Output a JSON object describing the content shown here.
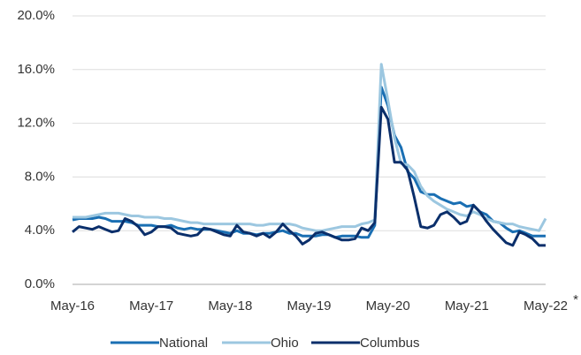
{
  "chart_data": {
    "type": "line",
    "categories": [
      "May-16",
      null,
      null,
      null,
      null,
      null,
      null,
      null,
      null,
      null,
      null,
      null,
      "May-17",
      null,
      null,
      null,
      null,
      null,
      null,
      null,
      null,
      null,
      null,
      null,
      "May-18",
      null,
      null,
      null,
      null,
      null,
      null,
      null,
      null,
      null,
      null,
      null,
      "May-19",
      null,
      null,
      null,
      null,
      null,
      null,
      null,
      null,
      null,
      null,
      null,
      "May-20",
      null,
      null,
      null,
      null,
      null,
      null,
      null,
      null,
      null,
      null,
      null,
      "May-21",
      null,
      null,
      null,
      null,
      null,
      null,
      null,
      null,
      null,
      null,
      null,
      "May-22"
    ],
    "x_footnote_marker": "*",
    "series": [
      {
        "name": "National",
        "color": "#1a6fb3",
        "values": [
          4.8,
          4.9,
          4.9,
          4.9,
          5.0,
          4.9,
          4.7,
          4.7,
          4.7,
          4.6,
          4.4,
          4.4,
          4.4,
          4.3,
          4.3,
          4.4,
          4.2,
          4.1,
          4.2,
          4.1,
          4.1,
          4.1,
          4.0,
          3.9,
          3.8,
          4.0,
          3.8,
          3.8,
          3.7,
          3.8,
          3.8,
          3.9,
          4.0,
          3.8,
          3.8,
          3.6,
          3.6,
          3.6,
          3.7,
          3.7,
          3.5,
          3.6,
          3.6,
          3.6,
          3.5,
          3.5,
          4.4,
          14.7,
          13.3,
          11.1,
          10.2,
          8.4,
          7.9,
          6.9,
          6.7,
          6.7,
          6.4,
          6.2,
          6.0,
          6.1,
          5.8,
          5.9,
          5.4,
          5.2,
          4.7,
          4.6,
          4.2,
          3.9,
          4.0,
          3.8,
          3.6,
          3.6,
          3.6
        ]
      },
      {
        "name": "Ohio",
        "color": "#9cc7e0",
        "values": [
          5.0,
          5.0,
          5.0,
          5.1,
          5.2,
          5.3,
          5.3,
          5.3,
          5.2,
          5.1,
          5.1,
          5.0,
          5.0,
          5.0,
          4.9,
          4.9,
          4.8,
          4.7,
          4.6,
          4.6,
          4.5,
          4.5,
          4.5,
          4.5,
          4.5,
          4.5,
          4.5,
          4.5,
          4.4,
          4.4,
          4.5,
          4.5,
          4.5,
          4.5,
          4.4,
          4.2,
          4.1,
          4.0,
          4.0,
          4.1,
          4.2,
          4.3,
          4.3,
          4.3,
          4.5,
          4.6,
          4.8,
          16.4,
          13.7,
          10.9,
          9.0,
          8.9,
          8.4,
          7.3,
          6.6,
          6.2,
          5.9,
          5.6,
          5.4,
          5.2,
          5.1,
          5.4,
          5.2,
          4.9,
          4.7,
          4.6,
          4.5,
          4.5,
          4.3,
          4.2,
          4.1,
          4.0,
          4.9
        ]
      },
      {
        "name": "Columbus",
        "color": "#0b2f6b",
        "values": [
          3.9,
          4.3,
          4.2,
          4.1,
          4.3,
          4.1,
          3.9,
          4.0,
          4.9,
          4.7,
          4.3,
          3.7,
          3.9,
          4.3,
          4.3,
          4.2,
          3.8,
          3.7,
          3.6,
          3.7,
          4.2,
          4.1,
          3.9,
          3.7,
          3.6,
          4.4,
          3.9,
          3.8,
          3.6,
          3.8,
          3.5,
          3.9,
          4.5,
          4.0,
          3.6,
          3.0,
          3.3,
          3.8,
          3.9,
          3.7,
          3.5,
          3.3,
          3.3,
          3.4,
          4.2,
          4.0,
          4.6,
          13.2,
          12.3,
          9.1,
          9.1,
          8.5,
          6.5,
          4.3,
          4.2,
          4.4,
          5.2,
          5.4,
          5.0,
          4.5,
          4.7,
          5.9,
          5.4,
          4.7,
          4.1,
          3.6,
          3.1,
          2.9,
          3.9,
          3.7,
          3.4,
          2.9,
          2.9
        ]
      }
    ],
    "ylim": [
      0,
      20
    ],
    "yticks": [
      {
        "value": 0,
        "label": "0.0%"
      },
      {
        "value": 4,
        "label": "4.0%"
      },
      {
        "value": 8,
        "label": "8.0%"
      },
      {
        "value": 12,
        "label": "12.0%"
      },
      {
        "value": 16,
        "label": "16.0%"
      },
      {
        "value": 20,
        "label": "20.0%"
      }
    ],
    "grid": true,
    "legend": "bottom"
  }
}
